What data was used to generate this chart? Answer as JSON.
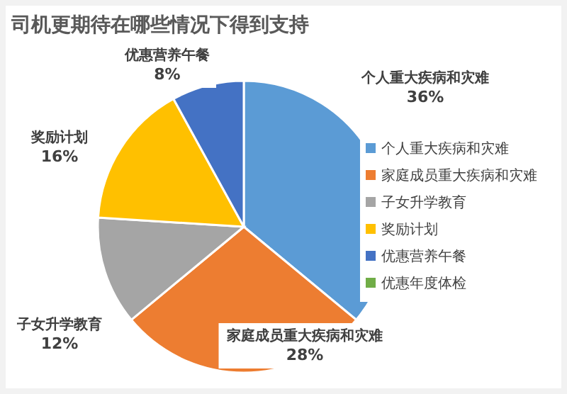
{
  "chart_data": {
    "type": "pie",
    "title": "司机更期待在哪些情况下得到支持",
    "categories": [
      "个人重大疾病和灾难",
      "家庭成员重大疾病和灾难",
      "子女升学教育",
      "奖励计划",
      "优惠营养午餐",
      "优惠年度体检"
    ],
    "values": [
      36,
      28,
      12,
      16,
      8,
      0
    ],
    "colors": [
      "#5b9bd5",
      "#ed7d31",
      "#a5a5a5",
      "#ffc000",
      "#4472c4",
      "#70ad47"
    ],
    "value_labels": [
      "36%",
      "28%",
      "12%",
      "16%",
      "8%",
      null
    ],
    "legend": "right"
  }
}
